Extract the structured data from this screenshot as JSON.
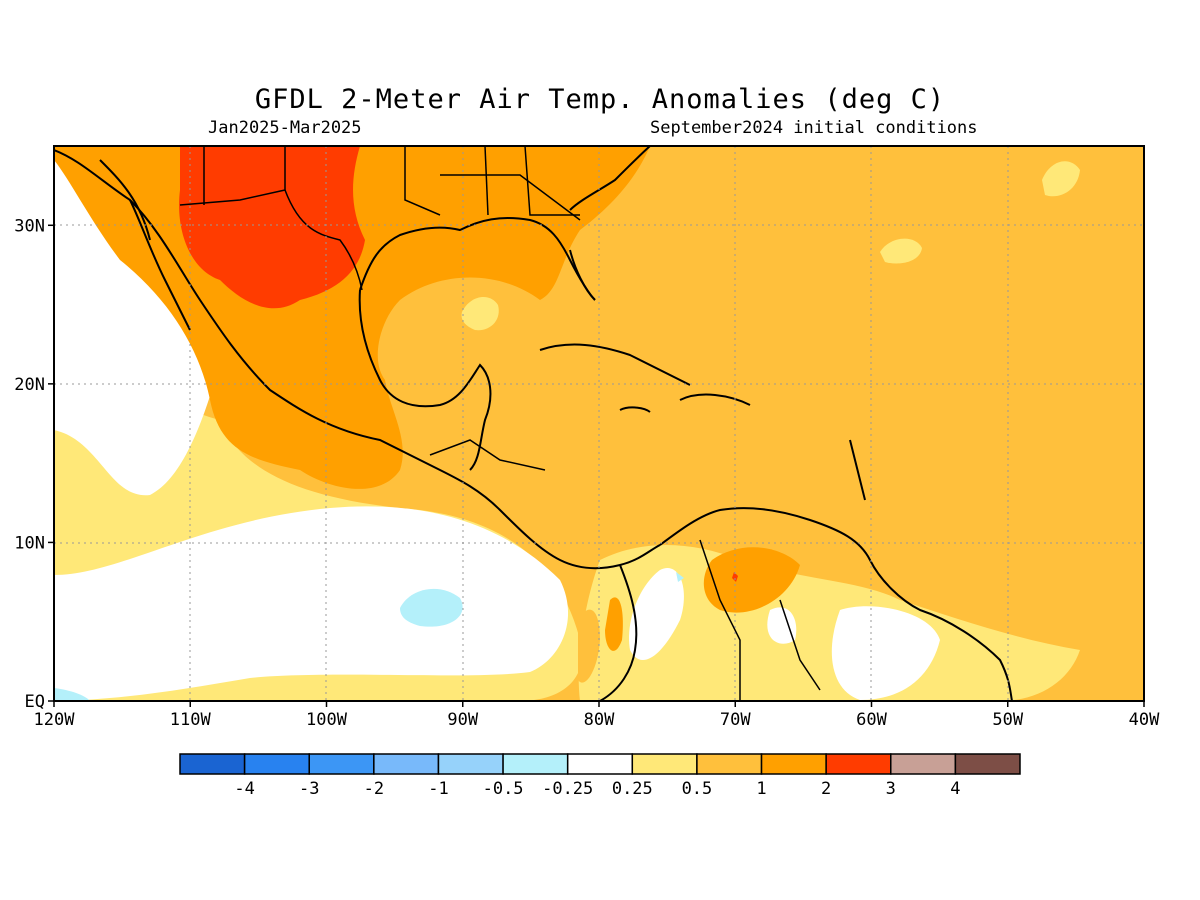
{
  "title": "GFDL 2-Meter Air Temp. Anomalies (deg C)",
  "period": "Jan2025-Mar2025",
  "init": "September2024 initial conditions",
  "chart_data": {
    "type": "heatmap",
    "lon_range": [
      -120,
      -40
    ],
    "lat_range": [
      0,
      35
    ],
    "lon_ticks": [
      "120W",
      "110W",
      "100W",
      "90W",
      "80W",
      "70W",
      "60W",
      "50W",
      "40W"
    ],
    "lat_ticks": [
      "30N",
      "20N",
      "10N",
      "EQ"
    ],
    "lon_tick_values": [
      -120,
      -110,
      -100,
      -90,
      -80,
      -70,
      -60,
      -50,
      -40
    ],
    "lat_tick_values": [
      30,
      20,
      10,
      0
    ],
    "grid": true,
    "colorbar": {
      "labels": [
        "-4",
        "-3",
        "-2",
        "-1",
        "-0.5",
        "-0.25",
        "0.25",
        "0.5",
        "1",
        "2",
        "3",
        "4"
      ],
      "colors": [
        "#1a64d2",
        "#2882f0",
        "#3c96f5",
        "#78b9fa",
        "#96d2fa",
        "#b4f0fa",
        "#ffffff",
        "#ffe878",
        "#ffc03c",
        "#ffa000",
        "#ff3c00",
        "#c8a096",
        "#7d4e46"
      ]
    }
  }
}
